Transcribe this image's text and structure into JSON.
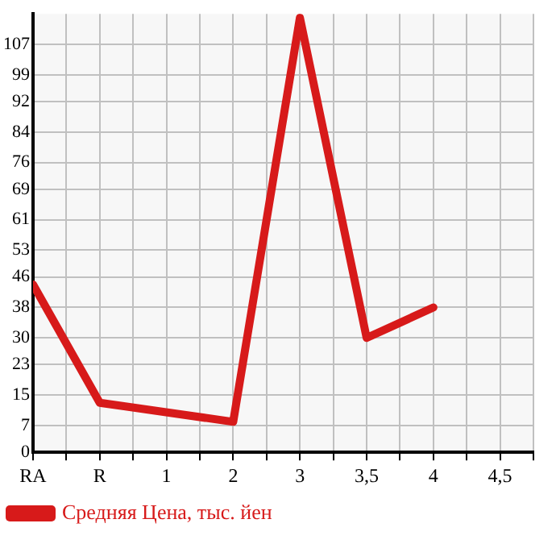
{
  "chart_data": {
    "type": "line",
    "categories": [
      "RA",
      "R",
      "1",
      "2",
      "3",
      "3,5",
      "4",
      "4,5"
    ],
    "series": [
      {
        "name": "Средняя Цена, тыс. йен",
        "color": "#d71a1a",
        "values": [
          44,
          13,
          null,
          8,
          114,
          30,
          38,
          null
        ]
      }
    ],
    "ylim": [
      0,
      115
    ],
    "yticks": [
      0,
      7,
      15,
      23,
      30,
      38,
      46,
      53,
      61,
      69,
      76,
      84,
      92,
      99,
      107
    ],
    "grid": true,
    "legend": "bottom",
    "marker": "none",
    "line_style": "solid"
  }
}
